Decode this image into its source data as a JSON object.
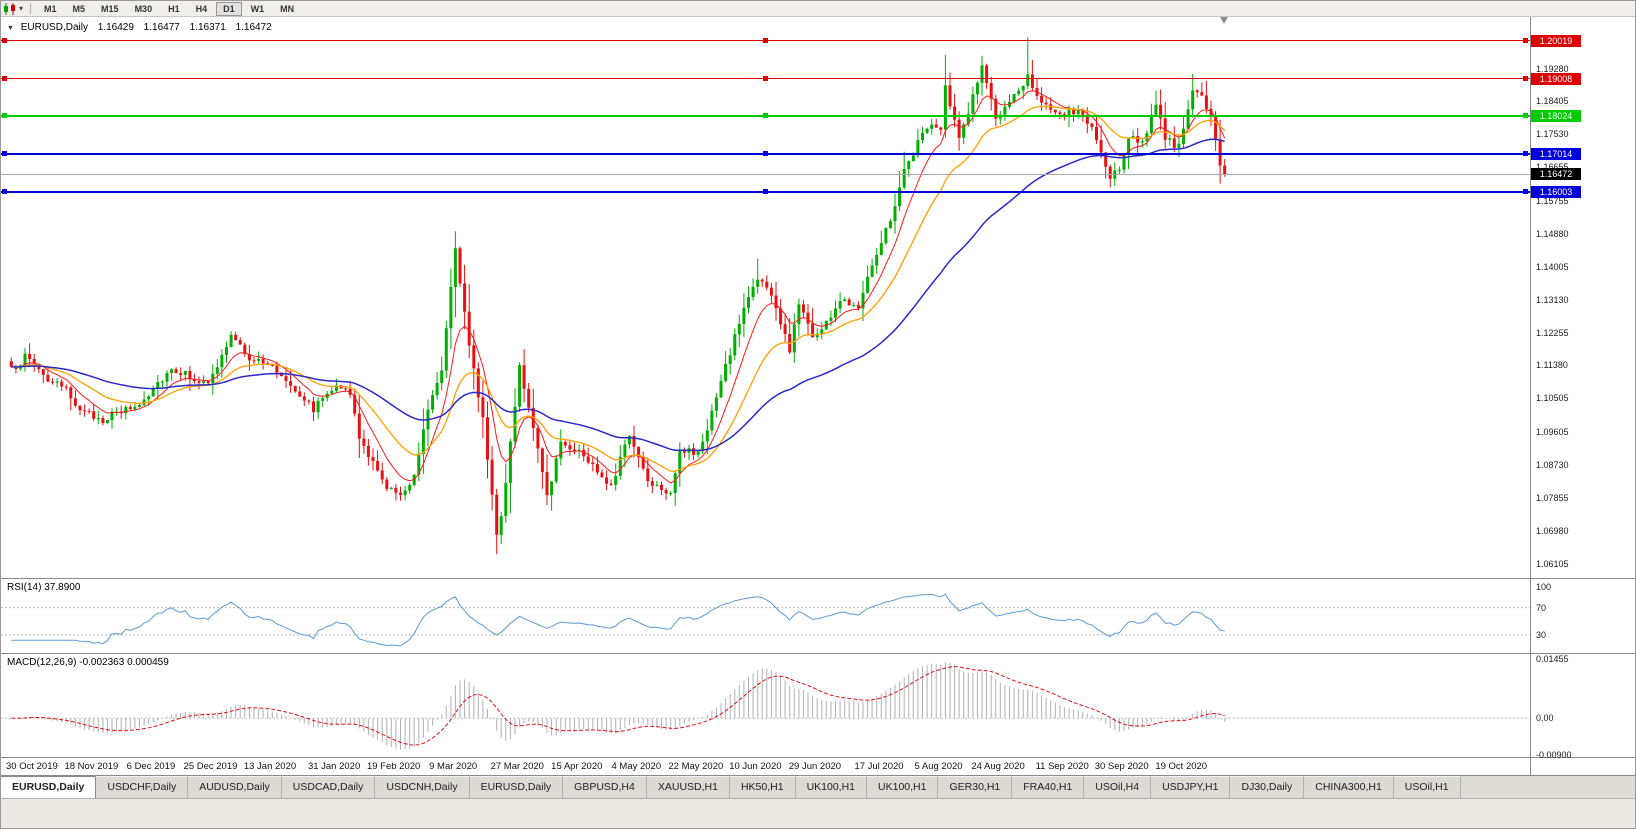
{
  "toolbar": {
    "timeframes": [
      "M1",
      "M5",
      "M15",
      "M30",
      "H1",
      "H4",
      "D1",
      "W1",
      "MN"
    ],
    "active_timeframe": "D1"
  },
  "chart": {
    "collapse_icon": "▼",
    "title": "EURUSD,Daily",
    "open": "1.16429",
    "high": "1.16477",
    "low": "1.16371",
    "close": "1.16472",
    "price_range": {
      "max": 1.2065,
      "min": 1.057
    },
    "price_axis_labels": [
      "1.19280",
      "1.18405",
      "1.17530",
      "1.16655",
      "1.15755",
      "1.14880",
      "1.14005",
      "1.13130",
      "1.12255",
      "1.11380",
      "1.10505",
      "1.09605",
      "1.08730",
      "1.07855",
      "1.06980",
      "1.06105"
    ],
    "levels": [
      {
        "price": 1.20019,
        "label": "1.20019",
        "color": "#dd0000",
        "thickness": 1
      },
      {
        "price": 1.19008,
        "label": "1.19008",
        "color": "#dd0000",
        "thickness": 1
      },
      {
        "price": 1.18024,
        "label": "1.18024",
        "color": "#00cc00",
        "thickness": 2
      },
      {
        "price": 1.17014,
        "label": "1.17014",
        "color": "#0000dd",
        "thickness": 2
      },
      {
        "price": 1.16003,
        "label": "1.16003",
        "color": "#0000dd",
        "thickness": 2
      }
    ],
    "bid": {
      "price": 1.16472,
      "label": "1.16472"
    },
    "date_axis": [
      {
        "label": "30 Oct 2019",
        "i": 5
      },
      {
        "label": "18 Nov 2019",
        "i": 18
      },
      {
        "label": "6 Dec 2019",
        "i": 31
      },
      {
        "label": "25 Dec 2019",
        "i": 44
      },
      {
        "label": "13 Jan 2020",
        "i": 57
      },
      {
        "label": "31 Jan 2020",
        "i": 71
      },
      {
        "label": "19 Feb 2020",
        "i": 84
      },
      {
        "label": "9 Mar 2020",
        "i": 97
      },
      {
        "label": "27 Mar 2020",
        "i": 111
      },
      {
        "label": "15 Apr 2020",
        "i": 124
      },
      {
        "label": "4 May 2020",
        "i": 137
      },
      {
        "label": "22 May 2020",
        "i": 150
      },
      {
        "label": "10 Jun 2020",
        "i": 163
      },
      {
        "label": "29 Jun 2020",
        "i": 176
      },
      {
        "label": "17 Jul 2020",
        "i": 190
      },
      {
        "label": "5 Aug 2020",
        "i": 203
      },
      {
        "label": "24 Aug 2020",
        "i": 216
      },
      {
        "label": "11 Sep 2020",
        "i": 230
      },
      {
        "label": "30 Sep 2020",
        "i": 243
      },
      {
        "label": "19 Oct 2020",
        "i": 256
      }
    ]
  },
  "chart_data": {
    "type": "candlestick",
    "symbol": "EURUSD",
    "timeframe": "Daily",
    "num_candles": 266,
    "up_color": "#00ad00",
    "down_color": "#e81010",
    "close_keypoints": [
      [
        0,
        1.1125
      ],
      [
        3,
        1.116
      ],
      [
        5,
        1.1145
      ],
      [
        8,
        1.11
      ],
      [
        12,
        1.107
      ],
      [
        16,
        1.101
      ],
      [
        20,
        1.0995
      ],
      [
        24,
        1.1015
      ],
      [
        28,
        1.1035
      ],
      [
        31,
        1.108
      ],
      [
        35,
        1.113
      ],
      [
        39,
        1.111
      ],
      [
        43,
        1.1085
      ],
      [
        48,
        1.1215
      ],
      [
        52,
        1.116
      ],
      [
        57,
        1.1134
      ],
      [
        61,
        1.109
      ],
      [
        66,
        1.1023
      ],
      [
        71,
        1.1094
      ],
      [
        74,
        1.106
      ],
      [
        76,
        1.0945
      ],
      [
        81,
        1.0831
      ],
      [
        85,
        1.0786
      ],
      [
        88,
        1.0851
      ],
      [
        91,
        1.1026
      ],
      [
        94,
        1.1134
      ],
      [
        97,
        1.1456
      ],
      [
        100,
        1.1184
      ],
      [
        103,
        1.0998
      ],
      [
        106,
        1.0694
      ],
      [
        107,
        1.0727
      ],
      [
        111,
        1.1141
      ],
      [
        114,
        1.0965
      ],
      [
        117,
        1.0791
      ],
      [
        120,
        1.0935
      ],
      [
        124,
        1.091
      ],
      [
        128,
        1.0858
      ],
      [
        131,
        1.0821
      ],
      [
        135,
        1.0955
      ],
      [
        139,
        1.0834
      ],
      [
        144,
        1.0801
      ],
      [
        146,
        1.0915
      ],
      [
        150,
        1.0901
      ],
      [
        153,
        1.1011
      ],
      [
        156,
        1.1134
      ],
      [
        160,
        1.1291
      ],
      [
        163,
        1.1374
      ],
      [
        166,
        1.1324
      ],
      [
        170,
        1.1177
      ],
      [
        172,
        1.1308
      ],
      [
        175,
        1.1219
      ],
      [
        177,
        1.1234
      ],
      [
        181,
        1.1309
      ],
      [
        185,
        1.13
      ],
      [
        188,
        1.1412
      ],
      [
        192,
        1.1526
      ],
      [
        195,
        1.1656
      ],
      [
        200,
        1.1778
      ],
      [
        203,
        1.1762
      ],
      [
        204,
        1.1876
      ],
      [
        207,
        1.1739
      ],
      [
        212,
        1.1933
      ],
      [
        215,
        1.1797
      ],
      [
        218,
        1.183
      ],
      [
        222,
        1.1911
      ],
      [
        225,
        1.1838
      ],
      [
        228,
        1.1801
      ],
      [
        233,
        1.1815
      ],
      [
        236,
        1.177
      ],
      [
        240,
        1.1631
      ],
      [
        242,
        1.1665
      ],
      [
        244,
        1.1748
      ],
      [
        247,
        1.1733
      ],
      [
        250,
        1.1826
      ],
      [
        252,
        1.1745
      ],
      [
        255,
        1.1718
      ],
      [
        258,
        1.1862
      ],
      [
        260,
        1.186
      ],
      [
        262,
        1.1794
      ],
      [
        264,
        1.1675
      ],
      [
        265,
        1.1647
      ]
    ],
    "extremes": [
      {
        "i": 85,
        "low": 1.0778
      },
      {
        "i": 97,
        "high": 1.1495
      },
      {
        "i": 106,
        "low": 1.0636
      },
      {
        "i": 163,
        "high": 1.1422
      },
      {
        "i": 222,
        "high": 1.2011
      },
      {
        "i": 240,
        "low": 1.1612
      },
      {
        "i": 265,
        "low": 1.164
      }
    ],
    "moving_averages": [
      {
        "name": "fast",
        "period": 8,
        "color": "#ff1a1a",
        "width": 1
      },
      {
        "name": "medium",
        "period": 20,
        "color": "#ff9f00",
        "width": 1.3
      },
      {
        "name": "slow",
        "period": 55,
        "color": "#2a2ac8",
        "width": 1.5
      }
    ]
  },
  "rsi": {
    "label": "RSI(14) 37.8900",
    "period": 14,
    "value": 37.89,
    "color": "#5b9bd5",
    "range": {
      "max": 112,
      "min": 2
    },
    "guide_levels": [
      70,
      30
    ],
    "axis_labels": [
      {
        "label": "100",
        "value": 100
      },
      {
        "label": "70",
        "value": 70
      },
      {
        "label": "30",
        "value": 30
      }
    ]
  },
  "macd": {
    "label": "MACD(12,26,9) -0.002363 0.000459",
    "macd_value": -0.002363,
    "signal_value": 0.000459,
    "range": {
      "max": 0.0158,
      "min": -0.0098
    },
    "axis_labels": [
      {
        "label": "0.01455",
        "value": 0.01455
      },
      {
        "label": "0.00",
        "value": 0
      },
      {
        "label": "-0.00900",
        "value": -0.009
      }
    ]
  },
  "tabs": {
    "active_index": 0,
    "items": [
      "EURUSD,Daily",
      "USDCHF,Daily",
      "AUDUSD,Daily",
      "USDCAD,Daily",
      "USDCNH,Daily",
      "EURUSD,Daily",
      "GBPUSD,H4",
      "XAUUSD,H1",
      "HK50,H1",
      "UK100,H1",
      "UK100,H1",
      "GER30,H1",
      "FRA40,H1",
      "USOil,H4",
      "USDJPY,H1",
      "DJ30,Daily",
      "CHINA300,H1",
      "USOil,H1"
    ]
  }
}
